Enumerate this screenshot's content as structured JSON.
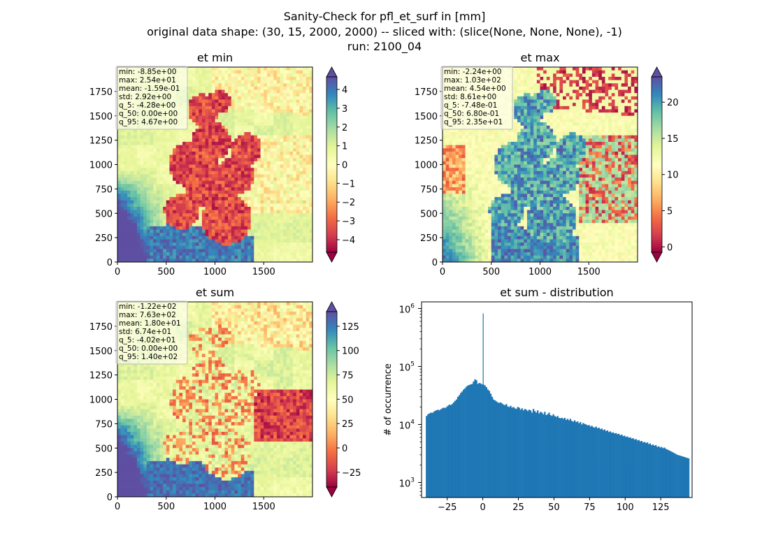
{
  "suptitle": [
    "Sanity-Check for pfl_et_surf in [mm]",
    "original data shape: (30, 15, 2000, 2000) -- sliced with: (slice(None, None, None), -1)",
    "run: 2100_04"
  ],
  "chart_data": [
    {
      "type": "heatmap",
      "title": "et min",
      "xlim": [
        0,
        2000
      ],
      "ylim": [
        0,
        2000
      ],
      "x_ticks": [
        0,
        500,
        1000,
        1500
      ],
      "y_ticks": [
        0,
        250,
        500,
        750,
        1000,
        1250,
        1500,
        1750
      ],
      "colorbar": {
        "cmap": "Spectral",
        "min": -4.67,
        "max": 4.67,
        "extend": "both",
        "ticks": [
          -4,
          -3,
          -2,
          -1,
          0,
          1,
          2,
          3,
          4
        ]
      },
      "stats": [
        "min: -8.85e+00",
        "max: 2.54e+01",
        "mean: -1.59e-01",
        "std: 2.92e+00",
        "q_5: -4.28e+00",
        "q_50: 0.00e+00",
        "q_95: 4.67e+00"
      ]
    },
    {
      "type": "heatmap",
      "title": "et max",
      "xlim": [
        0,
        2000
      ],
      "ylim": [
        0,
        2000
      ],
      "x_ticks": [
        0,
        500,
        1000,
        1500
      ],
      "y_ticks": [
        0,
        250,
        500,
        750,
        1000,
        1250,
        1500,
        1750
      ],
      "colorbar": {
        "cmap": "Spectral",
        "min": -0.748,
        "max": 23.5,
        "extend": "both",
        "ticks": [
          0,
          5,
          10,
          15,
          20
        ]
      },
      "stats": [
        "min: -2.24e+00",
        "max: 1.03e+02",
        "mean: 4.54e+00",
        "std: 8.61e+00",
        "q_5: -7.48e-01",
        "q_50: 6.80e-01",
        "q_95: 2.35e+01"
      ]
    },
    {
      "type": "heatmap",
      "title": "et sum",
      "xlim": [
        0,
        2000
      ],
      "ylim": [
        0,
        2000
      ],
      "x_ticks": [
        0,
        500,
        1000,
        1500
      ],
      "y_ticks": [
        0,
        250,
        500,
        750,
        1000,
        1250,
        1500,
        1750
      ],
      "colorbar": {
        "cmap": "Spectral",
        "min": -40.2,
        "max": 140,
        "extend": "both",
        "ticks": [
          -25,
          0,
          25,
          50,
          75,
          100,
          125
        ]
      },
      "stats": [
        "min: -1.22e+02",
        "max: 7.63e+02",
        "mean: 1.80e+01",
        "std: 6.74e+01",
        "q_5: -4.02e+01",
        "q_50: 0.00e+00",
        "q_95: 1.40e+02"
      ]
    },
    {
      "type": "bar",
      "title": "et sum - distribution",
      "ylabel": "# of occurrence",
      "yscale": "log",
      "xlim": [
        -43,
        147
      ],
      "ylim": [
        550,
        1300000
      ],
      "x_ticks": [
        -25,
        0,
        25,
        50,
        75,
        100,
        125
      ],
      "y_ticks": [
        1000,
        10000,
        100000,
        1000000
      ],
      "y_tick_labels": [
        [
          "10",
          "3"
        ],
        [
          "10",
          "4"
        ],
        [
          "10",
          "5"
        ],
        [
          "10",
          "6"
        ]
      ],
      "bar_color": "#1f77b4",
      "bins": {
        "start": -40,
        "width": 1
      },
      "values": [
        14000,
        15000,
        15500,
        16000,
        15800,
        16500,
        17200,
        17600,
        18000,
        17500,
        18300,
        19000,
        19500,
        19200,
        20000,
        21000,
        22000,
        21600,
        22500,
        24000,
        25500,
        27000,
        30000,
        32000,
        35000,
        37000,
        40000,
        42000,
        45000,
        47000,
        48000,
        49000,
        50000,
        55000,
        60000,
        58000,
        50000,
        52000,
        51000,
        49000,
        48500,
        47000,
        44000,
        40000,
        38000,
        34000,
        30000,
        27000,
        26000,
        25000,
        24000,
        23500,
        24000,
        23000,
        22000,
        21500,
        22500,
        20500,
        20000,
        21000,
        19500,
        20000,
        19000,
        18500,
        20000,
        19500,
        18000,
        19000,
        17500,
        18500,
        18000,
        17000,
        18000,
        17500,
        16000,
        18500,
        17000,
        16000,
        17500,
        15500,
        16500,
        16000,
        15000,
        16500,
        14500,
        15000,
        16000,
        14500,
        14000,
        15000,
        14000,
        13500,
        14000,
        13000,
        12800,
        13000,
        12500,
        13000,
        12000,
        12500,
        11800,
        12500,
        11500,
        11200,
        11800,
        11000,
        11300,
        10500,
        11000,
        10000,
        10600,
        10200,
        10000,
        9600,
        9800,
        9200,
        9500,
        9000,
        8800,
        9200,
        8600,
        8800,
        8300,
        8500,
        8000,
        8200,
        7700,
        7900,
        7400,
        7600,
        7200,
        7300,
        7000,
        7100,
        6800,
        6900,
        6500,
        6700,
        6300,
        6400,
        6100,
        6200,
        5900,
        6000,
        5700,
        5800,
        5500,
        5600,
        5300,
        5400,
        5100,
        5200,
        4900,
        5000,
        4800,
        4900,
        4600,
        4700,
        4400,
        4500,
        4300,
        4400,
        4100,
        4200,
        4000,
        4100,
        3900,
        4000,
        3800,
        3700,
        3600,
        3500,
        3400,
        3300,
        3200,
        3100,
        3000,
        2950,
        2900,
        2850,
        2800,
        2750,
        2700,
        2650,
        2600
      ],
      "spikes": [
        {
          "x": 0,
          "value": 820000
        },
        {
          "x": 22,
          "value": 8000
        },
        {
          "x": 47,
          "value": 5200
        },
        {
          "x": 60,
          "value": 4000
        },
        {
          "x": 78,
          "value": 3000
        },
        {
          "x": 103,
          "value": 1900
        },
        {
          "x": 117,
          "value": 1500
        },
        {
          "x": 131,
          "value": 1100
        }
      ]
    }
  ]
}
